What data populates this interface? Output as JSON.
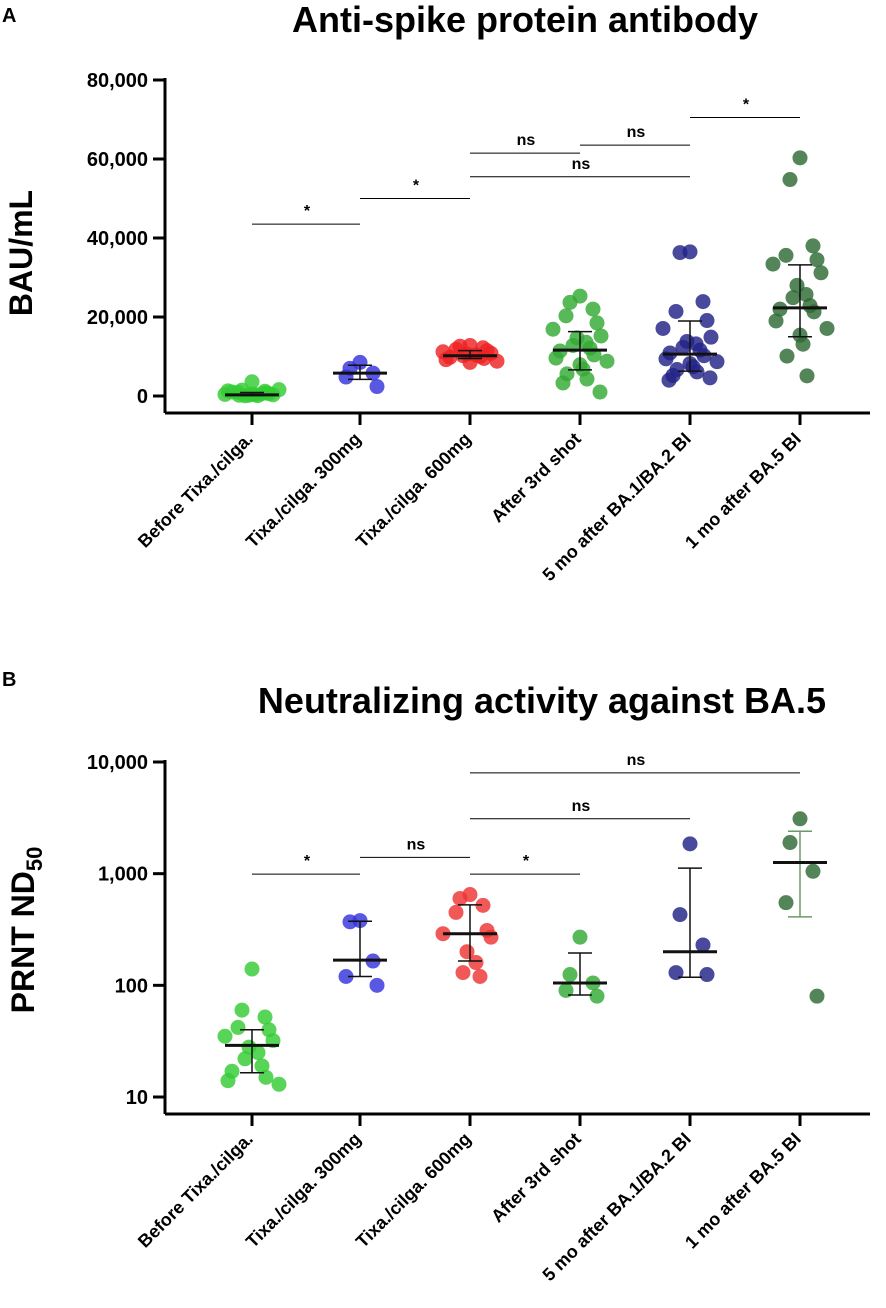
{
  "chart_data": [
    {
      "type": "scatter",
      "panel_label": "A",
      "title": "Anti-spike protein antibody",
      "ylabel": "BAU/mL",
      "xlabel": "",
      "yscale": "linear",
      "ylim": [
        0,
        80000
      ],
      "yticks": [
        0,
        20000,
        40000,
        60000,
        80000
      ],
      "ytick_labels": [
        "0",
        "20,000",
        "40,000",
        "60,000",
        "80,000"
      ],
      "categories": [
        "Before Tixa./cilga.",
        "Tixa./cilga. 300mg",
        "Tixa./cilga. 600mg",
        "After 3rd shot",
        "5 mo after BA.1/BA.2 BI",
        "1 mo after BA.5 BI"
      ],
      "colors": [
        "#33cc33",
        "#3333dd",
        "#ee2222",
        "#33aa33",
        "#222288",
        "#2d6a33"
      ],
      "groups": [
        {
          "points": [
            3600,
            1500,
            1200,
            900,
            600,
            400,
            300,
            200,
            100,
            50,
            600,
            1000,
            800,
            1300,
            1600,
            500,
            300,
            200
          ],
          "median": 300,
          "q1": 150,
          "q3": 900,
          "marker_color": "#111111",
          "err_color": "#111111"
        },
        {
          "points": [
            8500,
            7000,
            5800,
            4800,
            2400
          ],
          "median": 5800,
          "q1": 4200,
          "q3": 7800,
          "marker_color": "#111111",
          "err_color": "#111111"
        },
        {
          "points": [
            12800,
            12600,
            12200,
            11800,
            11500,
            11200,
            10800,
            10600,
            10400,
            10200,
            10000,
            9800,
            9500,
            9200,
            8800,
            8500
          ],
          "median": 10200,
          "q1": 9500,
          "q3": 11500,
          "marker_color": "#111111",
          "err_color": "#111111"
        },
        {
          "points": [
            25300,
            23700,
            22000,
            20300,
            18500,
            16900,
            15200,
            14700,
            13600,
            12800,
            12100,
            11400,
            10400,
            9600,
            8800,
            7900,
            6800,
            5600,
            4300,
            3300,
            1000
          ],
          "median": 11600,
          "q1": 6600,
          "q3": 16300,
          "marker_color": "#111111",
          "err_color": "#111111"
        },
        {
          "points": [
            36500,
            36300,
            23900,
            21400,
            19100,
            17100,
            14900,
            13800,
            13200,
            12300,
            11600,
            10900,
            10200,
            9400,
            8700,
            8200,
            7400,
            6700,
            6100,
            5200,
            4600,
            4000
          ],
          "median": 10600,
          "q1": 6300,
          "q3": 19000,
          "marker_color": "#111111",
          "err_color": "#111111"
        },
        {
          "points": [
            60300,
            54800,
            38000,
            35600,
            34500,
            33400,
            31200,
            28000,
            25700,
            24900,
            22900,
            22000,
            21300,
            19000,
            17100,
            15400,
            13100,
            10100,
            5100
          ],
          "median": 22300,
          "q1": 15000,
          "q3": 33200,
          "marker_color": "#111111",
          "err_color": "#111111"
        }
      ],
      "significance": [
        {
          "from": 0,
          "to": 1,
          "label": "*",
          "y": 43500
        },
        {
          "from": 1,
          "to": 2,
          "label": "*",
          "y": 50000
        },
        {
          "from": 3,
          "to": 4,
          "label": "ns",
          "y": 63500
        },
        {
          "from": 4,
          "to": 5,
          "label": "*",
          "y": 70500
        },
        {
          "from": 2,
          "to": 3,
          "label": "ns",
          "y": 61500
        },
        {
          "from": 2,
          "to": 4,
          "label": "ns",
          "y": 55500
        }
      ]
    },
    {
      "type": "scatter",
      "panel_label": "B",
      "title": "Neutralizing activity against BA.5",
      "ylabel": "PRNT ND",
      "ylabel_subscript": "50",
      "xlabel": "",
      "yscale": "log",
      "ylim": [
        10,
        10000
      ],
      "yticks": [
        10,
        100,
        1000,
        10000
      ],
      "ytick_labels": [
        "10",
        "100",
        "1,000",
        "10,000"
      ],
      "categories": [
        "Before Tixa./cilga.",
        "Tixa./cilga. 300mg",
        "Tixa./cilga. 600mg",
        "After 3rd shot",
        "5 mo after BA.1/BA.2 BI",
        "1 mo after BA.5 BI"
      ],
      "colors": [
        "#33cc33",
        "#3333dd",
        "#ee3333",
        "#33aa33",
        "#222288",
        "#2d6a33"
      ],
      "groups": [
        {
          "points": [
            140,
            60,
            52,
            42,
            40,
            35,
            32,
            28,
            25,
            22,
            19,
            17,
            15,
            14,
            13
          ],
          "median": 29,
          "q1": 16.5,
          "q3": 40,
          "marker_color": "#111111",
          "err_color": "#111111"
        },
        {
          "points": [
            380,
            370,
            165,
            120,
            100
          ],
          "median": 168,
          "q1": 120,
          "q3": 375,
          "marker_color": "#111111",
          "err_color": "#111111"
        },
        {
          "points": [
            650,
            600,
            520,
            450,
            310,
            290,
            270,
            200,
            160,
            130,
            120
          ],
          "median": 290,
          "q1": 165,
          "q3": 525,
          "marker_color": "#111111",
          "err_color": "#111111"
        },
        {
          "points": [
            270,
            125,
            105,
            90,
            80
          ],
          "median": 105,
          "q1": 82,
          "q3": 195,
          "marker_color": "#111111",
          "err_color": "#111111"
        },
        {
          "points": [
            1850,
            430,
            230,
            130,
            125
          ],
          "median": 200,
          "q1": 118,
          "q3": 1120,
          "marker_color": "#111111",
          "err_color": "#111111"
        },
        {
          "points": [
            3100,
            1900,
            1050,
            550,
            80
          ],
          "median": 1260,
          "q1": 410,
          "q3": 2400,
          "marker_color": "#111111",
          "err_color": "#6a9a6a"
        }
      ],
      "significance": [
        {
          "from": 0,
          "to": 1,
          "label": "*",
          "y": 990
        },
        {
          "from": 1,
          "to": 2,
          "label": "ns",
          "y": 1400
        },
        {
          "from": 2,
          "to": 3,
          "label": "*",
          "y": 990
        },
        {
          "from": 2,
          "to": 4,
          "label": "ns",
          "y": 3100
        },
        {
          "from": 2,
          "to": 5,
          "label": "ns",
          "y": 8000
        }
      ]
    }
  ]
}
